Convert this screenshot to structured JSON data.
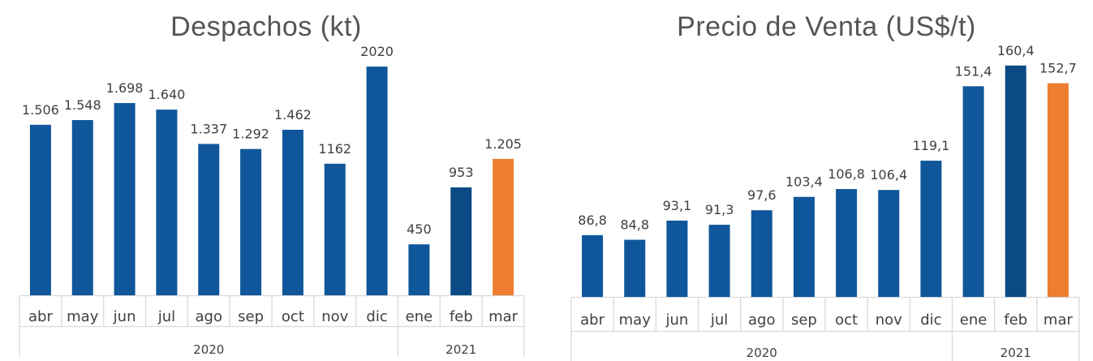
{
  "colors": {
    "bar": "#0F579A",
    "bar_dark": "#0B4A85",
    "highlight": "#ED7D31",
    "grid": "#D9D9D9",
    "text": "#404040",
    "title": "#555555"
  },
  "chart_data": [
    {
      "type": "bar",
      "title": "Despachos (kt)",
      "categories": [
        "abr",
        "may",
        "jun",
        "jul",
        "ago",
        "sep",
        "oct",
        "nov",
        "dic",
        "ene",
        "feb",
        "mar"
      ],
      "groups": [
        {
          "label": "2020",
          "count": 9
        },
        {
          "label": "2021",
          "count": 3
        }
      ],
      "values": [
        1506,
        1548,
        1698,
        1640,
        1337,
        1292,
        1462,
        1162,
        2020,
        450,
        953,
        1205
      ],
      "data_labels": [
        "1.506",
        "1.548",
        "1.698",
        "1.640",
        "1.337",
        "1.292",
        "1.462",
        "1162",
        "2020",
        "450",
        "953",
        "1.205"
      ],
      "highlight_index": 11,
      "ylim": [
        0,
        2250
      ],
      "grid": false,
      "xlabel": "",
      "ylabel": ""
    },
    {
      "type": "bar",
      "title": "Precio de Venta (US$/t)",
      "categories": [
        "abr",
        "may",
        "jun",
        "jul",
        "ago",
        "sep",
        "oct",
        "nov",
        "dic",
        "ene",
        "feb",
        "mar"
      ],
      "groups": [
        {
          "label": "2020",
          "count": 9
        },
        {
          "label": "2021",
          "count": 3
        }
      ],
      "values": [
        86.8,
        84.8,
        93.1,
        91.3,
        97.6,
        103.4,
        106.8,
        106.4,
        119.1,
        151.4,
        160.4,
        152.7
      ],
      "data_labels": [
        "86,8",
        "84,8",
        "93,1",
        "91,3",
        "97,6",
        "103,4",
        "106,8",
        "106,4",
        "119,1",
        "151,4",
        "160,4",
        "152,7"
      ],
      "highlight_index": 11,
      "ylim": [
        60,
        167
      ],
      "grid": false,
      "xlabel": "",
      "ylabel": ""
    }
  ]
}
